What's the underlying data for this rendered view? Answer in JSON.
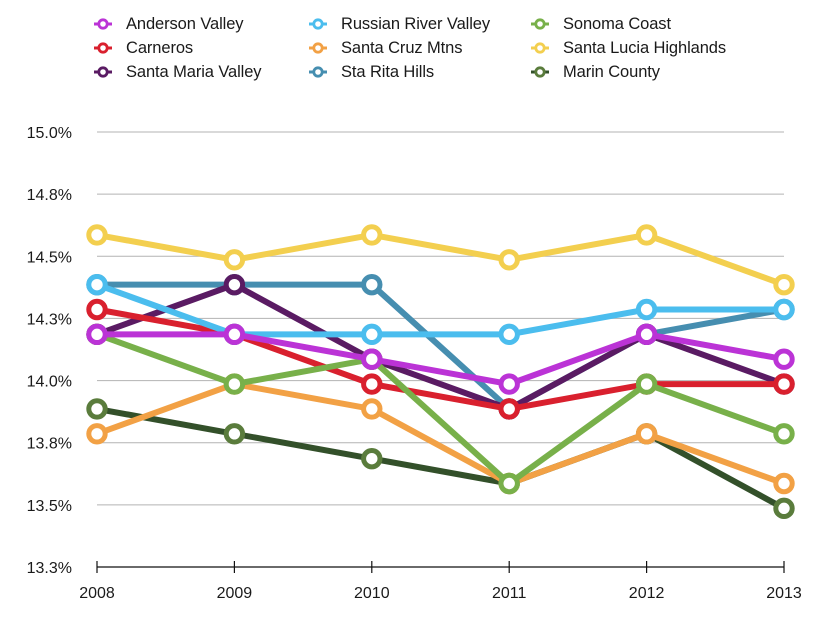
{
  "chart_data": {
    "type": "line",
    "title": "",
    "xlabel": "",
    "ylabel": "",
    "x": [
      "2008",
      "2009",
      "2010",
      "2011",
      "2012",
      "2013"
    ],
    "ylim": [
      13.25,
      15.0
    ],
    "yticks": [
      {
        "value": 15.0,
        "label": "15.0%"
      },
      {
        "value": 14.75,
        "label": "14.8%"
      },
      {
        "value": 14.5,
        "label": "14.5%"
      },
      {
        "value": 14.25,
        "label": "14.3%"
      },
      {
        "value": 14.0,
        "label": "14.0%"
      },
      {
        "value": 13.75,
        "label": "13.8%"
      },
      {
        "value": 13.5,
        "label": "13.5%"
      },
      {
        "value": 13.25,
        "label": "13.3%"
      }
    ],
    "grid": true,
    "legend_position": "top",
    "series": [
      {
        "name": "Anderson Valley",
        "color": "#bb33d6",
        "marker_color": "#bb33d6",
        "values": [
          14.2,
          14.2,
          14.1,
          14.0,
          14.2,
          14.1
        ]
      },
      {
        "name": "Carneros",
        "color": "#d9202e",
        "marker_color": "#d9202e",
        "values": [
          14.3,
          14.2,
          14.0,
          13.9,
          14.0,
          14.0
        ]
      },
      {
        "name": "Santa Maria Valley",
        "color": "#5a1b63",
        "marker_color": "#5a1b63",
        "values": [
          14.2,
          14.4,
          14.1,
          13.9,
          14.2,
          14.0
        ]
      },
      {
        "name": "Russian River Valley",
        "color": "#4bbdee",
        "marker_color": "#4bbdee",
        "values": [
          14.4,
          14.2,
          14.2,
          14.2,
          14.3,
          14.3
        ]
      },
      {
        "name": "Santa Cruz Mtns",
        "color": "#f2a145",
        "marker_color": "#f2a145",
        "values": [
          13.8,
          14.0,
          13.9,
          13.6,
          13.8,
          13.6
        ]
      },
      {
        "name": "Sta Rita Hills",
        "color": "#468eb0",
        "marker_color": "#468eb0",
        "values": [
          14.4,
          14.4,
          14.4,
          13.9,
          14.2,
          14.3
        ]
      },
      {
        "name": "Sonoma Coast",
        "color": "#78b04a",
        "marker_color": "#78b04a",
        "values": [
          14.2,
          14.0,
          14.1,
          13.6,
          14.0,
          13.8
        ]
      },
      {
        "name": "Santa Lucia Highlands",
        "color": "#f3cf4f",
        "marker_color": "#f3cf4f",
        "values": [
          14.6,
          14.5,
          14.6,
          14.5,
          14.6,
          14.4
        ]
      },
      {
        "name": "Marin County",
        "color": "#33502a",
        "marker_color": "#5a7c3c",
        "values": [
          13.9,
          13.8,
          13.7,
          13.6,
          13.8,
          13.5
        ]
      }
    ]
  }
}
